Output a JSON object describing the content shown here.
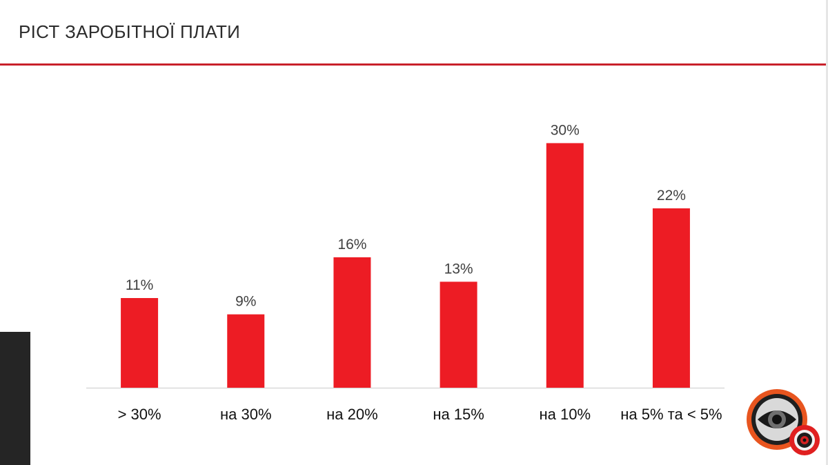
{
  "slide": {
    "title": "РІСТ ЗАРОБІТНОЇ ПЛАТИ"
  },
  "colors": {
    "bar": "#ed1c24",
    "title_rule": "#c8202a",
    "baseline": "#d9d9d9",
    "label_text": "#404040",
    "category_text": "#111111"
  },
  "logo": {
    "icon": "eye-logo-icon"
  },
  "chart_data": {
    "type": "bar",
    "title": "",
    "xlabel": "",
    "ylabel": "",
    "categories": [
      "> 30%",
      "на 30%",
      "на 20%",
      "на 15%",
      "на 10%",
      "на 5% та < 5%"
    ],
    "values": [
      11,
      9,
      16,
      13,
      30,
      22
    ],
    "data_labels": [
      "11%",
      "9%",
      "16%",
      "13%",
      "30%",
      "22%"
    ],
    "value_unit": "%",
    "ylim": [
      0,
      33
    ],
    "grid": false,
    "legend": "none"
  }
}
